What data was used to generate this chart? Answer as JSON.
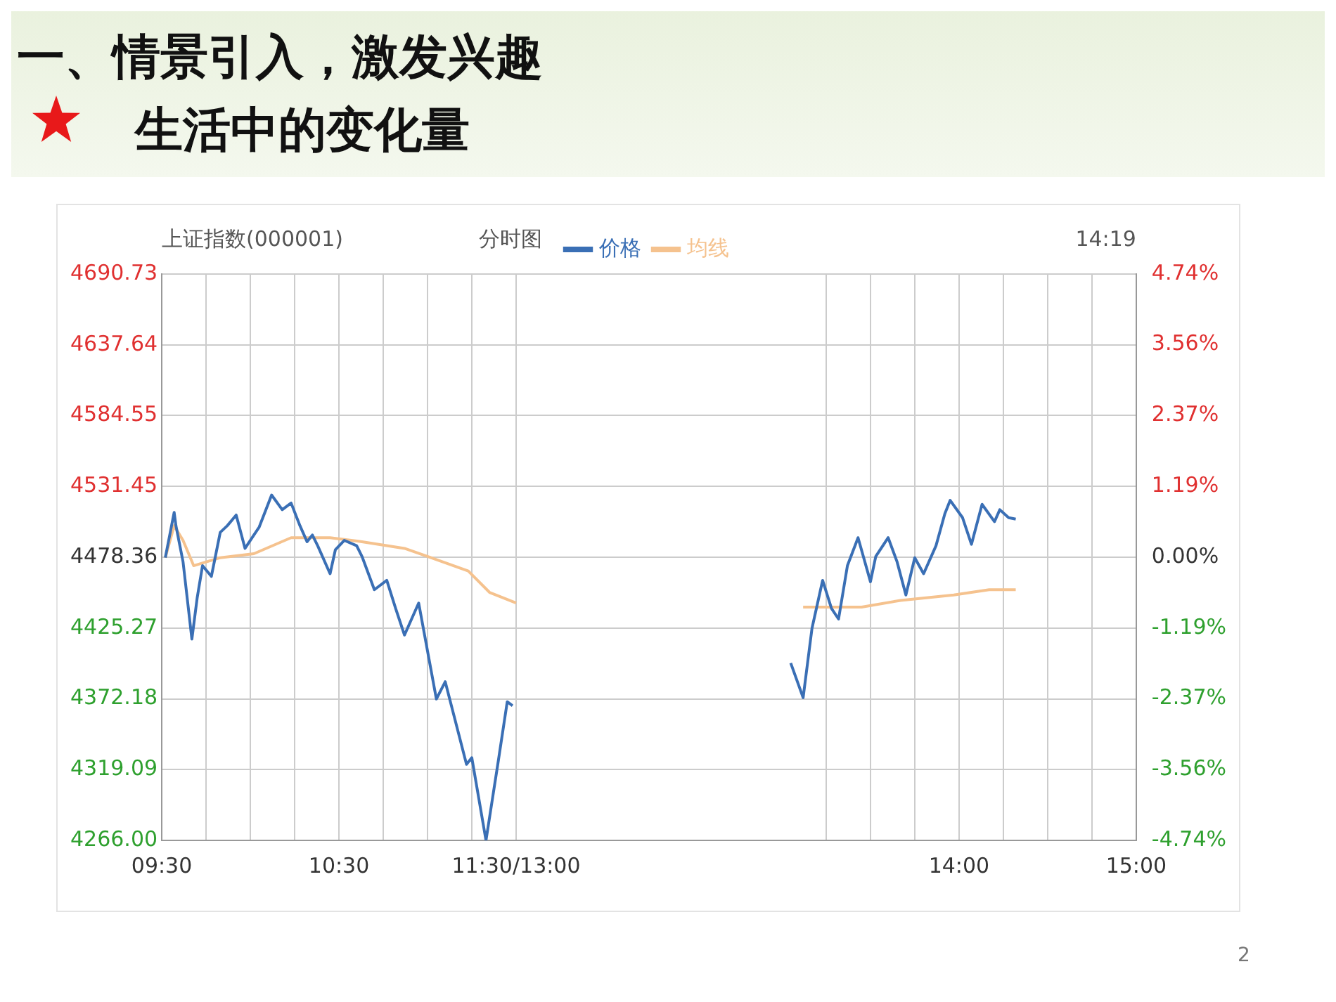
{
  "chart_data": {
    "type": "line",
    "title": "一、情景引入，激发兴趣",
    "subtitle": "生活中的变化量",
    "annotations": [
      "上证指数(000001)",
      "分时图",
      "14:19",
      "2"
    ],
    "xlim": [
      9.5,
      15
    ],
    "xticks": [
      {
        "value": 9.5,
        "label": "09:30"
      },
      {
        "value": 9.75,
        "label": null
      },
      {
        "value": 10,
        "label": null
      },
      {
        "value": 10.25,
        "label": null
      },
      {
        "value": 10.5,
        "label": "10:30"
      },
      {
        "value": 10.75,
        "label": null
      },
      {
        "value": 11,
        "label": null
      },
      {
        "value": 11.25,
        "label": null
      },
      {
        "value": 11.5,
        "label": "11:30/13:00"
      },
      {
        "value": 13.25,
        "label": null
      },
      {
        "value": 13.5,
        "label": null
      },
      {
        "value": 13.75,
        "label": null
      },
      {
        "value": 14,
        "label": "14:00"
      },
      {
        "value": 14.25,
        "label": null
      },
      {
        "value": 14.5,
        "label": null
      },
      {
        "value": 14.75,
        "label": null
      },
      {
        "value": 15,
        "label": "15:00"
      }
    ],
    "ylim": [
      4266,
      4690.73
    ],
    "yticks": [
      {
        "value": 4266,
        "label": "4266.00"
      },
      4319.09,
      4372.18,
      4425.27,
      4478.36,
      4531.45,
      4584.55,
      4637.64,
      4690.73
    ],
    "y2lim": [
      -4.74,
      4.74
    ],
    "y2ticks": [
      {
        "value": -4.74,
        "label": "-4.74%"
      },
      {
        "value": -3.56,
        "label": "-3.56%"
      },
      {
        "value": -2.37,
        "label": "-2.37%"
      },
      {
        "value": -1.19,
        "label": "-1.19%"
      },
      {
        "value": 0,
        "label": "0.00%"
      },
      {
        "value": 1.19,
        "label": "1.19%"
      },
      {
        "value": 2.37,
        "label": "2.37%"
      },
      {
        "value": 3.56,
        "label": "3.56%"
      },
      {
        "value": 4.74,
        "label": "4.74%"
      }
    ],
    "grid": true,
    "legend": "top",
    "marker": "none",
    "line_style": "solid",
    "series": [
      {
        "name": "价格",
        "color": "#3a6fb5",
        "x": [
          9.52,
          9.57,
          9.58,
          9.62,
          9.67,
          9.7,
          9.73,
          9.78,
          9.83,
          9.87,
          9.92,
          9.97,
          10.02,
          10.05,
          10.12,
          10.18,
          10.23,
          10.28,
          10.32,
          10.35,
          10.38,
          10.45,
          10.48,
          10.53,
          10.6,
          10.63,
          10.7,
          10.77,
          10.82,
          10.87,
          10.95,
          11.05,
          11.1,
          11.22,
          11.25,
          11.33,
          11.4,
          11.45,
          11.48,
          12.25,
          13.05,
          13.12,
          13.17,
          13.23,
          13.28,
          13.32,
          13.37,
          13.43,
          13.5,
          13.53,
          13.6,
          13.65,
          13.7,
          13.75,
          13.8,
          13.87,
          13.92,
          13.95,
          14.02,
          14.07,
          14.13,
          14.2,
          14.23,
          14.28,
          14.32
        ],
        "values": [
          4478,
          4512,
          4502,
          4475,
          4417,
          4448,
          4472,
          4464,
          4497,
          4502,
          4510,
          4485,
          4495,
          4501,
          4525,
          4514,
          4519,
          4502,
          4490,
          4495,
          4487,
          4466,
          4484,
          4491,
          4487,
          4479,
          4454,
          4461,
          4440,
          4420,
          4444,
          4372,
          4385,
          4323,
          4328,
          4266,
          4326,
          4370,
          4367,
          null,
          4399,
          4373,
          4425,
          4461,
          4440,
          4432,
          4472,
          4493,
          4460,
          4479,
          4493,
          4475,
          4450,
          4478,
          4466,
          4487,
          4511,
          4521,
          4508,
          4488,
          4518,
          4505,
          4514,
          4508,
          4507
        ]
      },
      {
        "name": "均线",
        "color": "#f5c28e",
        "x": [
          9.52,
          9.57,
          9.62,
          9.68,
          9.83,
          10.02,
          10.23,
          10.45,
          10.63,
          10.87,
          11,
          11.23,
          11.35,
          11.5,
          12.25,
          13.12,
          13.45,
          13.67,
          13.97,
          14.17,
          14.32
        ],
        "values": [
          4478,
          4502,
          4491,
          4472,
          4478,
          4481,
          4493,
          4493,
          4490,
          4485,
          4479,
          4468,
          4452,
          4444,
          null,
          4441,
          4441,
          4446,
          4450,
          4454,
          4454
        ]
      }
    ]
  }
}
